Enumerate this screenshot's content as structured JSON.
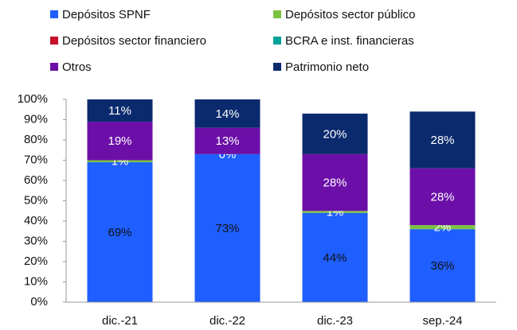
{
  "chart_data": {
    "type": "bar",
    "stacked": true,
    "categories": [
      "dic.-21",
      "dic.-22",
      "dic.-23",
      "sep.-24"
    ],
    "series": [
      {
        "name": "Depósitos SPNF",
        "color": "#1f5eff",
        "values": [
          69,
          73,
          44,
          36
        ],
        "value_labels": [
          "69%",
          "73%",
          "44%",
          "36%"
        ]
      },
      {
        "name": "Depósitos sector público",
        "color": "#7cc142",
        "values": [
          1,
          0,
          1,
          2
        ],
        "value_labels": [
          "1%",
          "0%",
          "1%",
          "2%"
        ]
      },
      {
        "name": "Depósitos sector financiero",
        "color": "#c8102e",
        "values": [
          0,
          0,
          0,
          0
        ]
      },
      {
        "name": "BCRA e inst. financieras",
        "color": "#00a19a",
        "values": [
          0,
          0,
          0,
          0
        ]
      },
      {
        "name": "Otros",
        "color": "#6c0fa8",
        "values": [
          19,
          13,
          28,
          28
        ],
        "value_labels": [
          "19%",
          "13%",
          "28%",
          "28%"
        ]
      },
      {
        "name": "Patrimonio neto",
        "color": "#0b2a6e",
        "values": [
          11,
          14,
          20,
          28
        ],
        "value_labels": [
          "11%",
          "14%",
          "20%",
          "28%"
        ]
      }
    ],
    "ylim": [
      0,
      100
    ],
    "yticks": [
      {
        "value": 0,
        "label": "0%"
      },
      {
        "value": 10,
        "label": "10%"
      },
      {
        "value": 20,
        "label": "20%"
      },
      {
        "value": 30,
        "label": "30%"
      },
      {
        "value": 40,
        "label": "40%"
      },
      {
        "value": 50,
        "label": "50%"
      },
      {
        "value": 60,
        "label": "60%"
      },
      {
        "value": 70,
        "label": "70%"
      },
      {
        "value": 80,
        "label": "80%"
      },
      {
        "value": 90,
        "label": "90%"
      },
      {
        "value": 100,
        "label": "100%"
      }
    ],
    "grid": false,
    "legend": "top"
  }
}
